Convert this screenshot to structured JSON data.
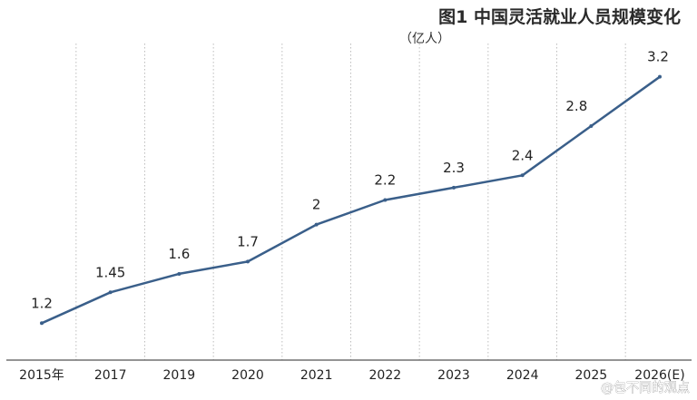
{
  "chart_data": {
    "type": "line",
    "title": "图1 中国灵活就业人员规模变化",
    "subtitle": "（亿人）",
    "categories": [
      "2015年",
      "2017",
      "2019",
      "2020",
      "2021",
      "2022",
      "2023",
      "2024",
      "2025",
      "2026(E)"
    ],
    "series": [
      {
        "values": [
          1.2,
          1.45,
          1.6,
          1.7,
          2,
          2.2,
          2.3,
          2.4,
          2.8,
          3.2
        ],
        "labels": [
          "1.2",
          "1.45",
          "1.6",
          "1.7",
          "2",
          "2.2",
          "2.3",
          "2.4",
          "2.8",
          "3.2"
        ]
      }
    ],
    "ylim": [
      0.9,
      3.47
    ],
    "grid": {
      "vertical": true,
      "horizontal": false
    },
    "legend": "none",
    "colors": {
      "line": "#3a5f8a",
      "grid": "#bdbdbd",
      "axis": "#555555"
    }
  },
  "watermark": "@包不同的观点"
}
